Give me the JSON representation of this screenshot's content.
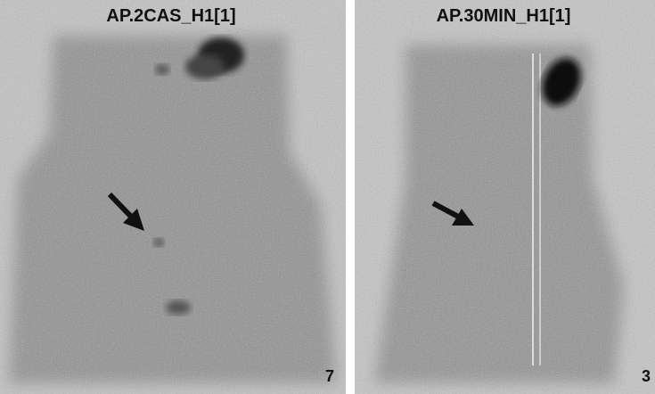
{
  "panels": [
    {
      "title": "AP.2CAS_H1[1]",
      "number": "7"
    },
    {
      "title": "AP.30MIN_H1[1]",
      "number": "3"
    }
  ]
}
